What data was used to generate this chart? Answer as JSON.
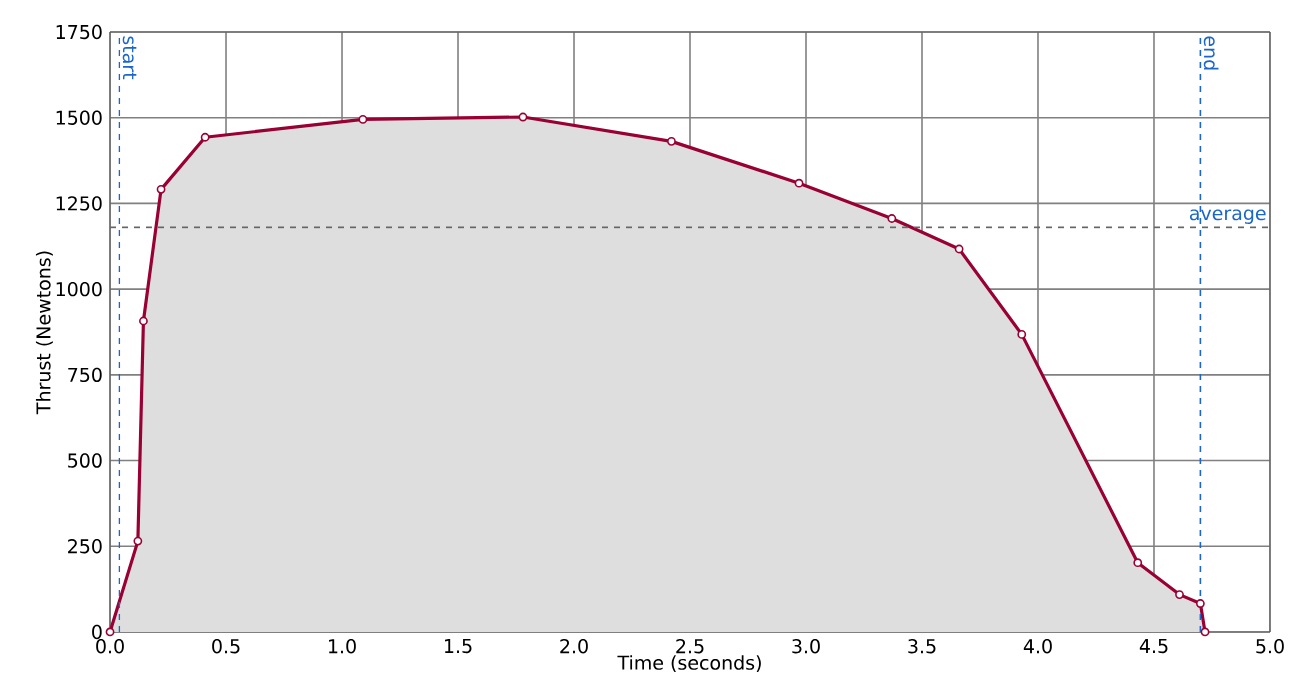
{
  "chart_data": {
    "type": "area",
    "xlabel": "Time (seconds)",
    "ylabel": "Thrust (Newtons)",
    "x": [
      0,
      0.12,
      0.144,
      0.22,
      0.41,
      1.09,
      1.78,
      2.42,
      2.97,
      3.37,
      3.66,
      3.93,
      4.43,
      4.61,
      4.7,
      4.72
    ],
    "series": [
      {
        "color": "#990033",
        "values": [
          0,
          265,
          907,
          1291,
          1443,
          1495,
          1502,
          1431,
          1309,
          1206,
          1117,
          868,
          202,
          109,
          83,
          0
        ]
      }
    ],
    "xlim": [
      0,
      5
    ],
    "ylim": [
      0,
      1750
    ],
    "xticks": [
      {
        "value": 0,
        "label": "0.0"
      },
      0.5,
      {
        "value": 1,
        "label": "1.0"
      },
      1.5,
      {
        "value": 2,
        "label": "2.0"
      },
      2.5,
      {
        "value": 3,
        "label": "3.0"
      },
      3.5,
      {
        "value": 4,
        "label": "4.0"
      },
      4.5,
      {
        "value": 5,
        "label": "5.0"
      }
    ],
    "yticks": [
      0,
      250,
      500,
      750,
      1000,
      1250,
      1500,
      1750
    ],
    "ref_lines": [
      {
        "axis": "x",
        "value": 0.04,
        "label": "start",
        "color": "#1a66cc",
        "line_style": "dashed"
      },
      {
        "axis": "x",
        "value": 4.7,
        "label": "end",
        "color": "#1a66cc",
        "line_style": "dashed"
      },
      {
        "axis": "y",
        "value": 1180,
        "label": "average",
        "color": "#666666",
        "line_style": "dashed"
      }
    ],
    "grid": true,
    "marker": "circle",
    "line_style": "solid"
  }
}
